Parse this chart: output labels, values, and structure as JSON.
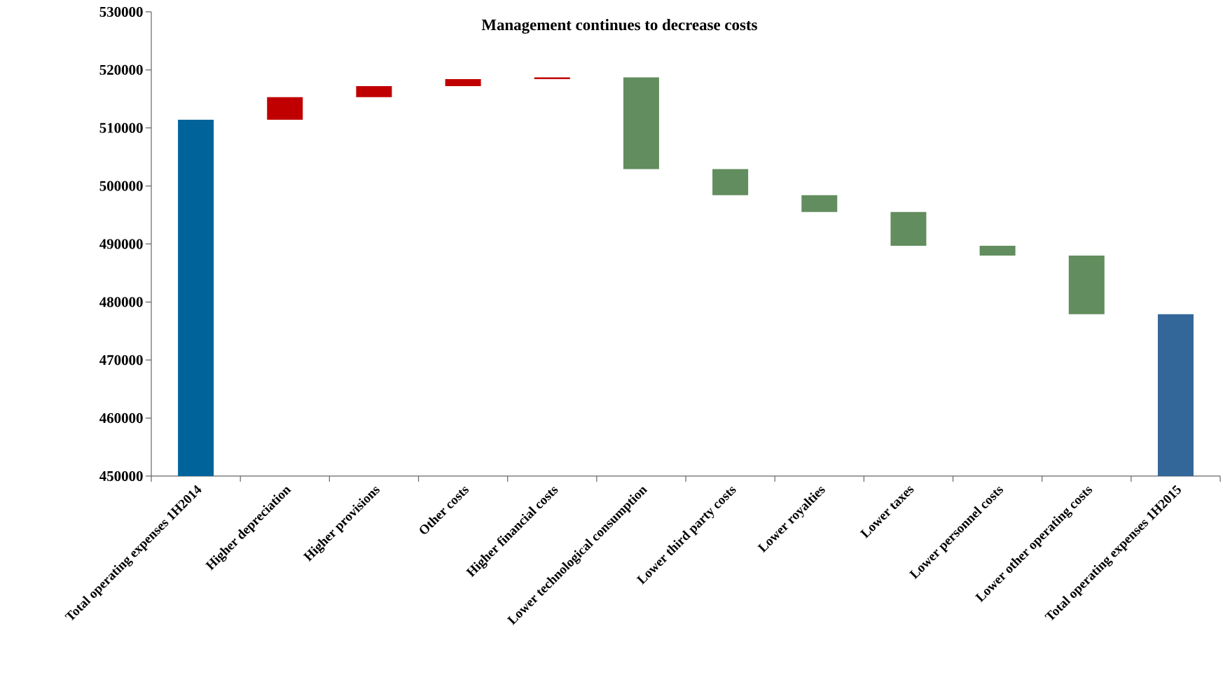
{
  "chart_data": {
    "type": "bar",
    "title": "Management continues to decrease costs",
    "categories": [
      "Total operating expenses 1H2014",
      "Higher depreciation",
      "Higher provisions",
      "Other costs",
      "Higher financial costs",
      "Lower technological consumption",
      "Lower third party costs",
      "Lower royalties",
      "Lower taxes",
      "Lower personnel costs",
      "Lower other operating costs",
      "Total operating expenses 1H2015"
    ],
    "values": [
      511400,
      3900,
      1900,
      1200,
      300,
      -15800,
      -4500,
      -2900,
      -5800,
      -1700,
      -10100,
      477900
    ],
    "base": [
      null,
      511400,
      515300,
      517200,
      518400,
      518700,
      502900,
      498400,
      495500,
      489700,
      488000,
      null
    ],
    "colors": [
      "#00649a",
      "#c00000",
      "#c00000",
      "#c00000",
      "#c00000",
      "#628d5e",
      "#628d5e",
      "#628d5e",
      "#628d5e",
      "#628d5e",
      "#628d5e",
      "#336699"
    ],
    "ylim": [
      450000,
      530000
    ],
    "yticks": [
      450000,
      460000,
      470000,
      480000,
      490000,
      500000,
      510000,
      520000,
      530000
    ],
    "grid": false
  }
}
